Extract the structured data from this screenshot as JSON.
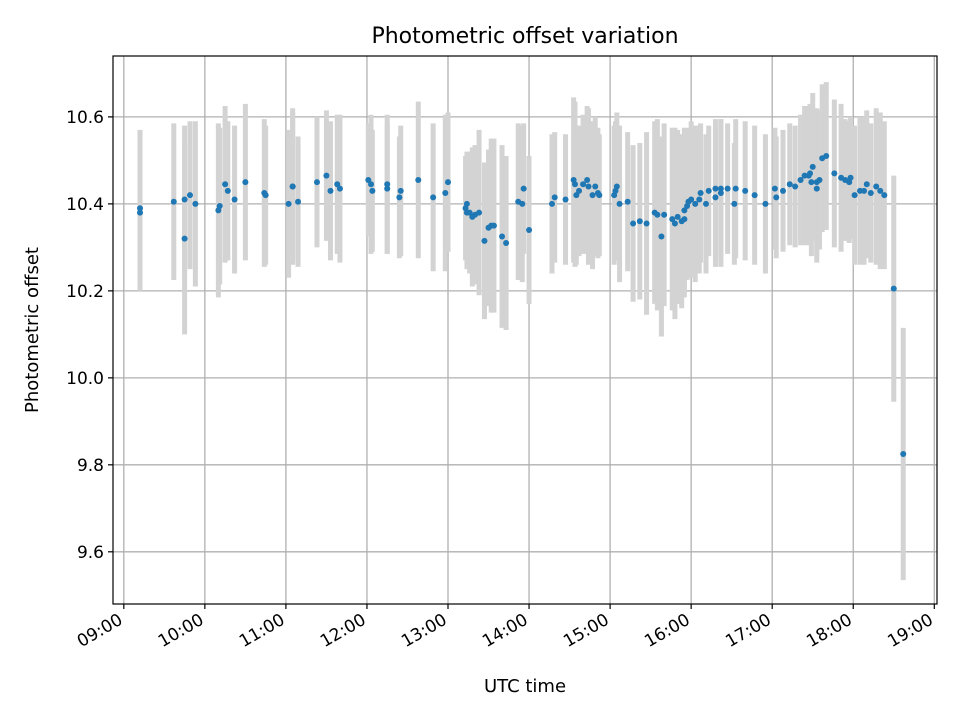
{
  "chart_data": {
    "type": "scatter",
    "title": "Photometric offset variation",
    "xlabel": "UTC time",
    "ylabel": "Photometric offset",
    "x_range": [
      "08:52",
      "19:02"
    ],
    "ylim": [
      9.48,
      10.74
    ],
    "grid": true,
    "x_ticks": [
      "09:00",
      "10:00",
      "11:00",
      "12:00",
      "13:00",
      "14:00",
      "15:00",
      "16:00",
      "17:00",
      "18:00",
      "19:00"
    ],
    "y_ticks": [
      9.6,
      9.8,
      10.0,
      10.2,
      10.4,
      10.6
    ],
    "y_tick_labels": [
      "9.6",
      "9.8",
      "10.0",
      "10.2",
      "10.4",
      "10.6"
    ],
    "colors": {
      "points": "#1f77b4",
      "errorbars": "#d3d3d3",
      "grid": "#b0b0b0"
    },
    "series": [
      {
        "x": [
          "09:12",
          "09:12",
          "09:37",
          "09:45",
          "09:45",
          "09:49",
          "09:53",
          "10:10",
          "10:11",
          "10:15",
          "10:17",
          "10:22",
          "10:30",
          "10:44",
          "10:45",
          "11:02",
          "11:05",
          "11:05",
          "11:09",
          "11:23",
          "11:30",
          "11:33",
          "11:38",
          "11:40",
          "12:01",
          "12:03",
          "12:04",
          "12:15",
          "12:15",
          "12:24",
          "12:25",
          "12:38",
          "12:49",
          "12:58",
          "13:00",
          "13:13",
          "13:14",
          "13:14",
          "13:16",
          "13:18",
          "13:20",
          "13:23",
          "13:27",
          "13:30",
          "13:32",
          "13:34",
          "13:40",
          "13:43",
          "13:52",
          "13:55",
          "13:56",
          "14:00",
          "14:17",
          "14:19",
          "14:27",
          "14:33",
          "14:34",
          "14:35",
          "14:37",
          "14:40",
          "14:43",
          "14:44",
          "14:47",
          "14:49",
          "14:51",
          "14:52",
          "15:03",
          "15:04",
          "15:05",
          "15:07",
          "15:13",
          "15:17",
          "15:22",
          "15:27",
          "15:33",
          "15:35",
          "15:38",
          "15:40",
          "15:46",
          "15:48",
          "15:50",
          "15:53",
          "15:55",
          "15:55",
          "15:57",
          "15:58",
          "16:00",
          "16:03",
          "16:06",
          "16:07",
          "16:11",
          "16:13",
          "16:18",
          "16:18",
          "16:22",
          "16:22",
          "16:27",
          "16:32",
          "16:33",
          "16:40",
          "16:47",
          "16:55",
          "17:02",
          "17:03",
          "17:08",
          "17:13",
          "17:17",
          "17:21",
          "17:24",
          "17:27",
          "17:28",
          "17:29",
          "17:30",
          "17:33",
          "17:33",
          "17:35",
          "17:37",
          "17:40",
          "17:46",
          "17:51",
          "17:54",
          "17:57",
          "17:58",
          "18:01",
          "18:05",
          "18:08",
          "18:10",
          "18:13",
          "18:17",
          "18:20",
          "18:23",
          "18:30",
          "18:37"
        ],
        "y": [
          10.38,
          10.39,
          10.405,
          10.41,
          10.32,
          10.42,
          10.4,
          10.385,
          10.395,
          10.445,
          10.43,
          10.41,
          10.45,
          10.425,
          10.42,
          10.4,
          10.44,
          10.44,
          10.405,
          10.45,
          10.465,
          10.43,
          10.445,
          10.435,
          10.455,
          10.445,
          10.43,
          10.445,
          10.435,
          10.415,
          10.43,
          10.455,
          10.415,
          10.425,
          10.45,
          10.39,
          10.4,
          10.38,
          10.38,
          10.37,
          10.375,
          10.38,
          10.315,
          10.345,
          10.35,
          10.35,
          10.325,
          10.31,
          10.405,
          10.4,
          10.435,
          10.34,
          10.4,
          10.415,
          10.41,
          10.455,
          10.445,
          10.42,
          10.43,
          10.445,
          10.455,
          10.44,
          10.42,
          10.44,
          10.425,
          10.42,
          10.42,
          10.43,
          10.44,
          10.4,
          10.405,
          10.355,
          10.36,
          10.355,
          10.38,
          10.375,
          10.325,
          10.375,
          10.365,
          10.355,
          10.37,
          10.36,
          10.385,
          10.365,
          10.395,
          10.405,
          10.41,
          10.4,
          10.41,
          10.425,
          10.4,
          10.43,
          10.435,
          10.415,
          10.435,
          10.425,
          10.435,
          10.4,
          10.435,
          10.43,
          10.42,
          10.4,
          10.435,
          10.415,
          10.43,
          10.445,
          10.44,
          10.455,
          10.465,
          10.465,
          10.47,
          10.45,
          10.485,
          10.45,
          10.435,
          10.455,
          10.505,
          10.51,
          10.47,
          10.46,
          10.455,
          10.45,
          10.46,
          10.42,
          10.43,
          10.43,
          10.445,
          10.425,
          10.44,
          10.43,
          10.42,
          10.205,
          9.825
        ],
        "err": [
          0.18,
          0.18,
          0.18,
          0.17,
          0.22,
          0.17,
          0.19,
          0.2,
          0.18,
          0.18,
          0.16,
          0.17,
          0.18,
          0.17,
          0.16,
          0.17,
          0.18,
          0.17,
          0.15,
          0.15,
          0.15,
          0.16,
          0.16,
          0.17,
          0.13,
          0.16,
          0.14,
          0.16,
          0.15,
          0.14,
          0.15,
          0.18,
          0.17,
          0.18,
          0.16,
          0.12,
          0.12,
          0.13,
          0.14,
          0.16,
          0.16,
          0.19,
          0.18,
          0.18,
          0.2,
          0.2,
          0.21,
          0.2,
          0.18,
          0.18,
          0.15,
          0.17,
          0.16,
          0.15,
          0.15,
          0.19,
          0.19,
          0.16,
          0.15,
          0.16,
          0.17,
          0.18,
          0.17,
          0.16,
          0.15,
          0.14,
          0.16,
          0.16,
          0.17,
          0.18,
          0.16,
          0.18,
          0.18,
          0.21,
          0.21,
          0.22,
          0.23,
          0.21,
          0.21,
          0.22,
          0.2,
          0.2,
          0.19,
          0.18,
          0.17,
          0.17,
          0.18,
          0.18,
          0.17,
          0.16,
          0.16,
          0.15,
          0.16,
          0.16,
          0.16,
          0.17,
          0.15,
          0.14,
          0.16,
          0.16,
          0.16,
          0.16,
          0.14,
          0.14,
          0.14,
          0.14,
          0.14,
          0.15,
          0.16,
          0.16,
          0.16,
          0.17,
          0.17,
          0.17,
          0.17,
          0.16,
          0.17,
          0.17,
          0.17,
          0.17,
          0.14,
          0.14,
          0.14,
          0.16,
          0.17,
          0.17,
          0.17,
          0.16,
          0.18,
          0.18,
          0.17,
          0.26,
          0.29
        ]
      }
    ]
  }
}
